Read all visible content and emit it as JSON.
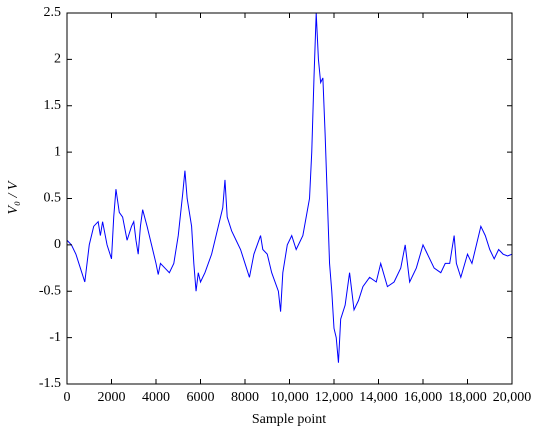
{
  "chart_data": {
    "type": "line",
    "x_label": "Sample point",
    "y_label": "V₀ / V",
    "xlim": [
      0,
      20000
    ],
    "ylim": [
      -1.5,
      2.5
    ],
    "xticks": [
      0,
      2000,
      4000,
      6000,
      8000,
      {
        "value": 10000,
        "label": "10,000"
      },
      {
        "value": 12000,
        "label": "12,000"
      },
      {
        "value": 14000,
        "label": "14,000"
      },
      {
        "value": 16000,
        "label": "16,000"
      },
      {
        "value": 18000,
        "label": "18,000"
      },
      {
        "value": 20000,
        "label": "20,000"
      }
    ],
    "yticks": [
      -1.5,
      -1,
      -0.5,
      0,
      0.5,
      1,
      1.5,
      2,
      2.5
    ],
    "grid": false,
    "x": [
      0,
      200,
      400,
      600,
      800,
      1000,
      1200,
      1400,
      1500,
      1600,
      1800,
      2000,
      2100,
      2200,
      2350,
      2500,
      2700,
      2900,
      3000,
      3100,
      3200,
      3300,
      3400,
      3600,
      3800,
      4000,
      4100,
      4200,
      4400,
      4600,
      4800,
      5000,
      5200,
      5300,
      5400,
      5600,
      5700,
      5800,
      5900,
      6000,
      6200,
      6500,
      6800,
      7000,
      7100,
      7200,
      7400,
      7600,
      7800,
      8000,
      8200,
      8400,
      8700,
      8800,
      9000,
      9200,
      9500,
      9600,
      9700,
      9900,
      10100,
      10300,
      10600,
      10900,
      11000,
      11100,
      11200,
      11300,
      11400,
      11500,
      11600,
      11700,
      11800,
      11900,
      12000,
      12100,
      12200,
      12300,
      12500,
      12700,
      12900,
      13100,
      13300,
      13600,
      13900,
      14100,
      14400,
      14700,
      15000,
      15200,
      15400,
      15700,
      16000,
      16200,
      16500,
      16800,
      17000,
      17200,
      17400,
      17500,
      17700,
      18000,
      18200,
      18400,
      18600,
      18800,
      19000,
      19200,
      19400,
      19600,
      19800,
      20000
    ],
    "series": [
      {
        "name": "V0/V",
        "color": "#0000ff",
        "values": [
          0.05,
          0.0,
          -0.1,
          -0.25,
          -0.4,
          0.0,
          0.2,
          0.25,
          0.1,
          0.25,
          0.0,
          -0.15,
          0.3,
          0.6,
          0.35,
          0.3,
          0.05,
          0.2,
          0.25,
          0.05,
          -0.1,
          0.2,
          0.38,
          0.2,
          0.0,
          -0.2,
          -0.32,
          -0.2,
          -0.25,
          -0.3,
          -0.2,
          0.1,
          0.55,
          0.8,
          0.5,
          0.2,
          -0.2,
          -0.5,
          -0.3,
          -0.4,
          -0.3,
          -0.1,
          0.2,
          0.4,
          0.7,
          0.3,
          0.15,
          0.05,
          -0.05,
          -0.2,
          -0.35,
          -0.1,
          0.1,
          -0.05,
          -0.1,
          -0.3,
          -0.5,
          -0.72,
          -0.3,
          0.0,
          0.1,
          -0.05,
          0.1,
          0.5,
          1.0,
          1.8,
          2.5,
          2.0,
          1.75,
          1.8,
          1.2,
          0.5,
          -0.2,
          -0.5,
          -0.9,
          -1.0,
          -1.27,
          -0.8,
          -0.65,
          -0.3,
          -0.7,
          -0.6,
          -0.45,
          -0.35,
          -0.4,
          -0.2,
          -0.45,
          -0.4,
          -0.25,
          0.0,
          -0.4,
          -0.25,
          0.0,
          -0.1,
          -0.25,
          -0.3,
          -0.2,
          -0.2,
          0.1,
          -0.2,
          -0.35,
          -0.1,
          -0.2,
          0.0,
          0.2,
          0.1,
          -0.05,
          -0.15,
          -0.05,
          -0.1,
          -0.12,
          -0.1
        ]
      }
    ]
  }
}
